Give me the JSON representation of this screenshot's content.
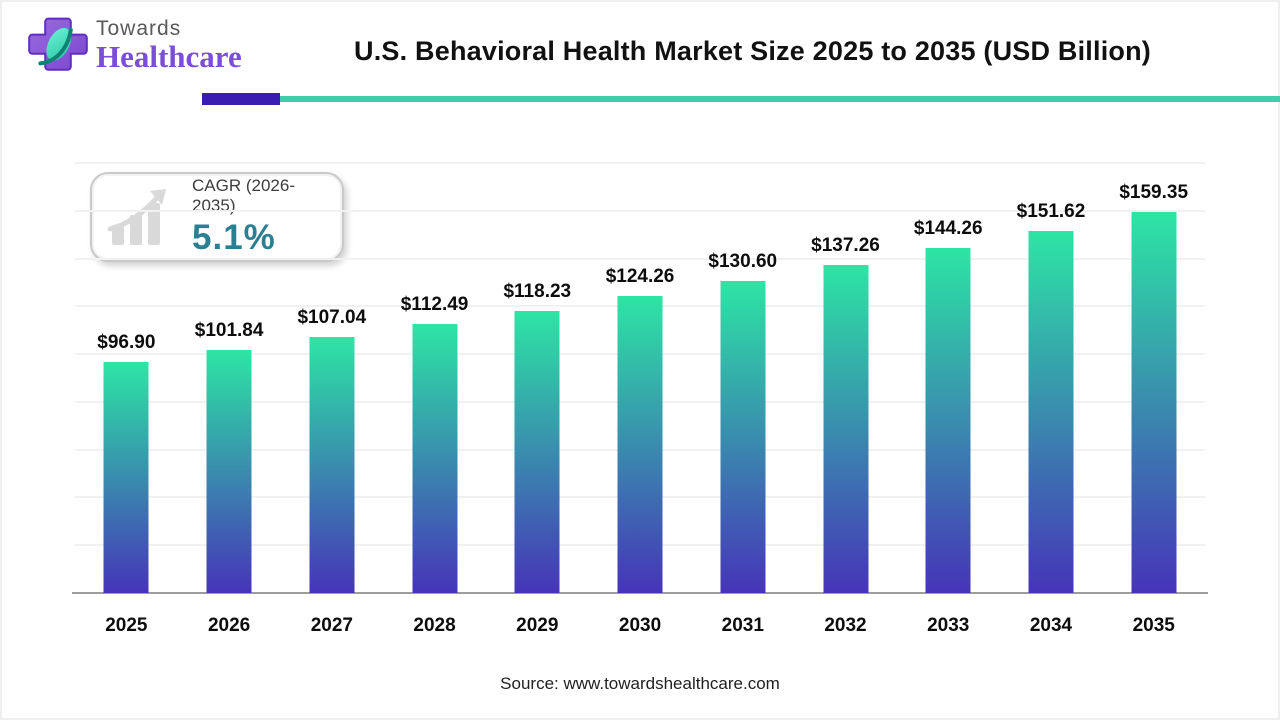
{
  "brand": {
    "line1": "Towards",
    "line2": "Healthcare"
  },
  "title": "U.S. Behavioral Health Market Size 2025 to 2035 (USD Billion)",
  "cagr": {
    "label": "CAGR (2026-2035)",
    "value": "5.1%"
  },
  "source": "Source: www.towardshealthcare.com",
  "colors": {
    "bar_top": "#2de5a4",
    "bar_bottom": "#4634b8",
    "rule_purple": "#3a1db1",
    "rule_teal": "#3fceaa",
    "cagr_value": "#2b7f92",
    "logo_purple": "#7a4ed8",
    "logo_gray": "#595959"
  },
  "chart_data": {
    "type": "bar",
    "title": "U.S. Behavioral Health Market Size 2025 to 2035 (USD Billion)",
    "categories": [
      "2025",
      "2026",
      "2027",
      "2028",
      "2029",
      "2030",
      "2031",
      "2032",
      "2033",
      "2034",
      "2035"
    ],
    "values": [
      96.9,
      101.84,
      107.04,
      112.49,
      118.23,
      124.26,
      130.6,
      137.26,
      144.26,
      151.62,
      159.35
    ],
    "value_labels": [
      "$96.90",
      "$101.84",
      "$107.04",
      "$112.49",
      "$118.23",
      "$124.26",
      "$130.60",
      "$137.26",
      "$144.26",
      "$151.62",
      "$159.35"
    ],
    "xlabel": "",
    "ylabel": "",
    "ylim": [
      0,
      180
    ],
    "gridline_step": 20,
    "grid": true,
    "legend": "none",
    "bar_gradient": [
      "#2de5a4",
      "#4634b8"
    ]
  }
}
